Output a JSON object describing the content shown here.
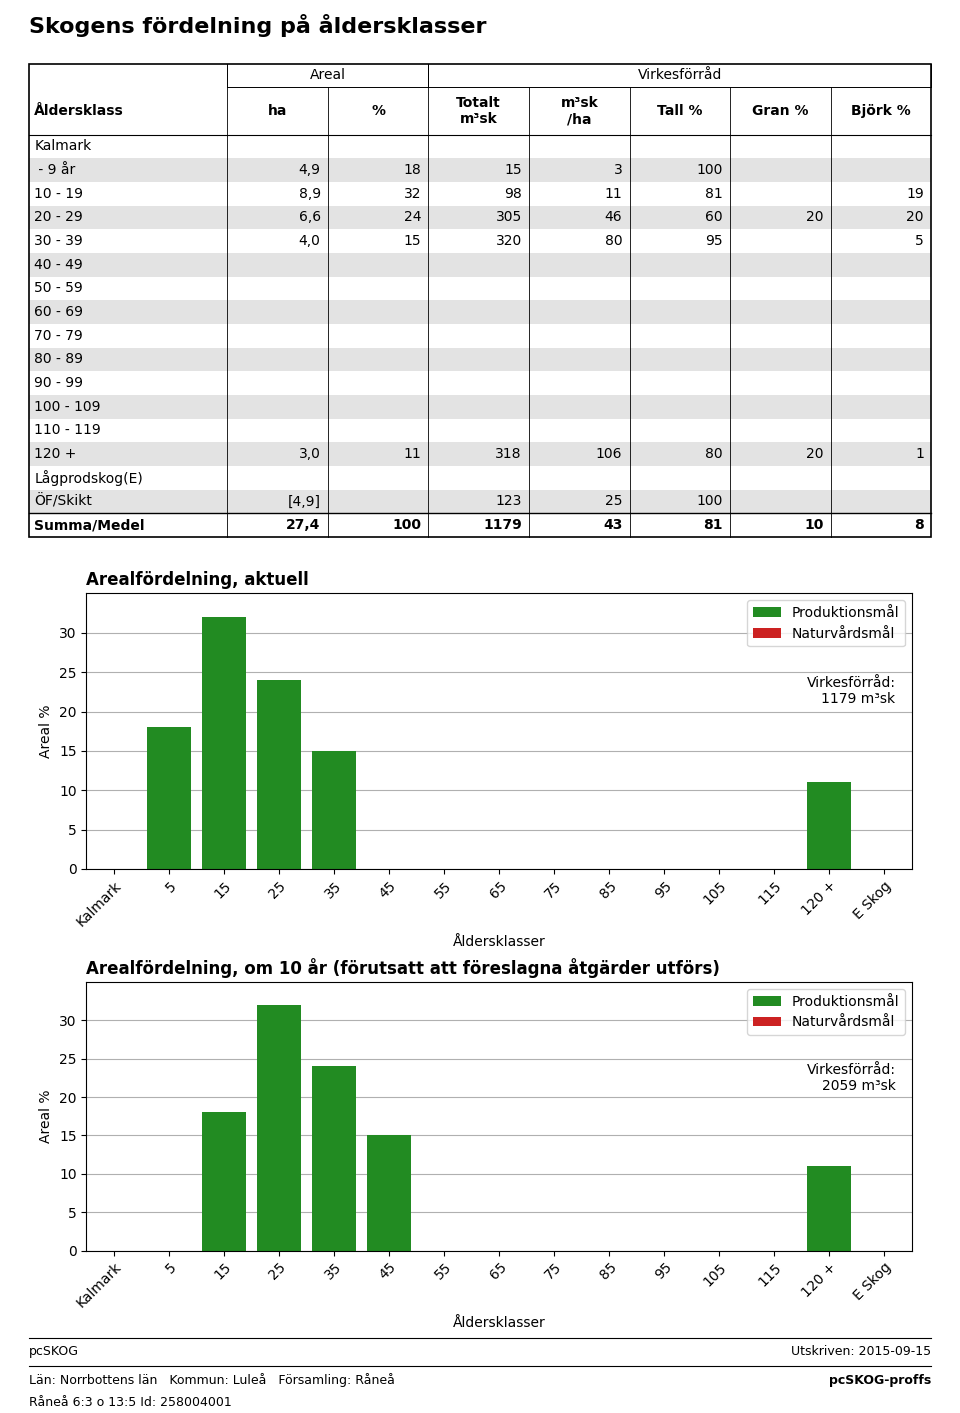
{
  "title": "Skogens fördelning på åldersklasser",
  "annotations": [
    "pcSKOG",
    "Utskriven: 2015-09-15",
    "Län: Norrbottens län   Kommun: Luleå   Församling: Råneå",
    "pcSKOG-proffs",
    "Råneå 6:3 o 13:5 Id: 258004001"
  ],
  "chart_data": [
    {
      "type": "table",
      "columns": [
        "Åldersklass",
        "ha",
        "%",
        "Totalt\nm³sk",
        "m³sk\n/ha",
        "Tall %",
        "Gran %",
        "Björk %"
      ],
      "column_groups": [
        {
          "label": "Areal",
          "columns": [
            "ha",
            "%"
          ]
        },
        {
          "label": "Virkesförråd",
          "columns": [
            "Totalt\nm³sk",
            "m³sk\n/ha",
            "Tall %",
            "Gran %",
            "Björk %"
          ]
        }
      ],
      "rows": [
        [
          "Kalmark",
          null,
          null,
          null,
          null,
          null,
          null,
          null
        ],
        [
          " - 9 år",
          "4,9",
          "18",
          "15",
          "3",
          "100",
          null,
          null
        ],
        [
          "10 - 19",
          "8,9",
          "32",
          "98",
          "11",
          "81",
          null,
          "19"
        ],
        [
          "20 - 29",
          "6,6",
          "24",
          "305",
          "46",
          "60",
          "20",
          "20"
        ],
        [
          "30 - 39",
          "4,0",
          "15",
          "320",
          "80",
          "95",
          null,
          "5"
        ],
        [
          "40 - 49",
          null,
          null,
          null,
          null,
          null,
          null,
          null
        ],
        [
          "50 - 59",
          null,
          null,
          null,
          null,
          null,
          null,
          null
        ],
        [
          "60 - 69",
          null,
          null,
          null,
          null,
          null,
          null,
          null
        ],
        [
          "70 - 79",
          null,
          null,
          null,
          null,
          null,
          null,
          null
        ],
        [
          "80 - 89",
          null,
          null,
          null,
          null,
          null,
          null,
          null
        ],
        [
          "90 - 99",
          null,
          null,
          null,
          null,
          null,
          null,
          null
        ],
        [
          "100 - 109",
          null,
          null,
          null,
          null,
          null,
          null,
          null
        ],
        [
          "110 - 119",
          null,
          null,
          null,
          null,
          null,
          null,
          null
        ],
        [
          "120 +",
          "3,0",
          "11",
          "318",
          "106",
          "80",
          "20",
          "1"
        ],
        [
          "Lågprodskog(E)",
          null,
          null,
          null,
          null,
          null,
          null,
          null
        ],
        [
          "ÖF/Skikt",
          "[4,9]",
          null,
          "123",
          "25",
          "100",
          null,
          null
        ],
        [
          "Summa/Medel",
          "27,4",
          "100",
          "1179",
          "43",
          "81",
          "10",
          "8"
        ]
      ]
    },
    {
      "type": "bar",
      "title": "Arealfördelning, aktuell",
      "xlabel": "Åldersklasser",
      "ylabel": "Areal %",
      "categories": [
        "Kalmark",
        "5",
        "15",
        "25",
        "35",
        "45",
        "55",
        "65",
        "75",
        "85",
        "95",
        "105",
        "115",
        "120 +",
        "E Skog"
      ],
      "series": [
        {
          "name": "Produktionsmål",
          "color": "#228B22",
          "values": [
            0,
            18,
            32,
            24,
            15,
            0,
            0,
            0,
            0,
            0,
            0,
            0,
            0,
            11,
            0
          ]
        },
        {
          "name": "Naturvårdsmål",
          "color": "#cc2222",
          "values": [
            null,
            null,
            null,
            null,
            null,
            null,
            null,
            null,
            null,
            null,
            null,
            null,
            null,
            null,
            null
          ]
        }
      ],
      "stacked": true,
      "ylim": [
        0,
        35
      ],
      "yticks": [
        0,
        5,
        10,
        15,
        20,
        25,
        30
      ],
      "grid": "y",
      "legend": "upper right",
      "annotations": [
        "Virkesförråd:",
        "1179 m³sk"
      ]
    },
    {
      "type": "bar",
      "title": "Arealfördelning, om 10 år (förutsatt att föreslagna åtgärder utförs)",
      "xlabel": "Åldersklasser",
      "ylabel": "Areal %",
      "categories": [
        "Kalmark",
        "5",
        "15",
        "25",
        "35",
        "45",
        "55",
        "65",
        "75",
        "85",
        "95",
        "105",
        "115",
        "120 +",
        "E Skog"
      ],
      "series": [
        {
          "name": "Produktionsmål",
          "color": "#228B22",
          "values": [
            0,
            0,
            18,
            32,
            24,
            15,
            0,
            0,
            0,
            0,
            0,
            0,
            0,
            11,
            0
          ]
        },
        {
          "name": "Naturvårdsmål",
          "color": "#cc2222",
          "values": [
            null,
            null,
            null,
            null,
            null,
            null,
            null,
            null,
            null,
            null,
            null,
            null,
            null,
            null,
            null
          ]
        }
      ],
      "stacked": true,
      "ylim": [
        0,
        35
      ],
      "yticks": [
        0,
        5,
        10,
        15,
        20,
        25,
        30
      ],
      "grid": "y",
      "legend": "upper right",
      "annotations": [
        "Virkesförråd:",
        "2059 m³sk"
      ]
    }
  ]
}
